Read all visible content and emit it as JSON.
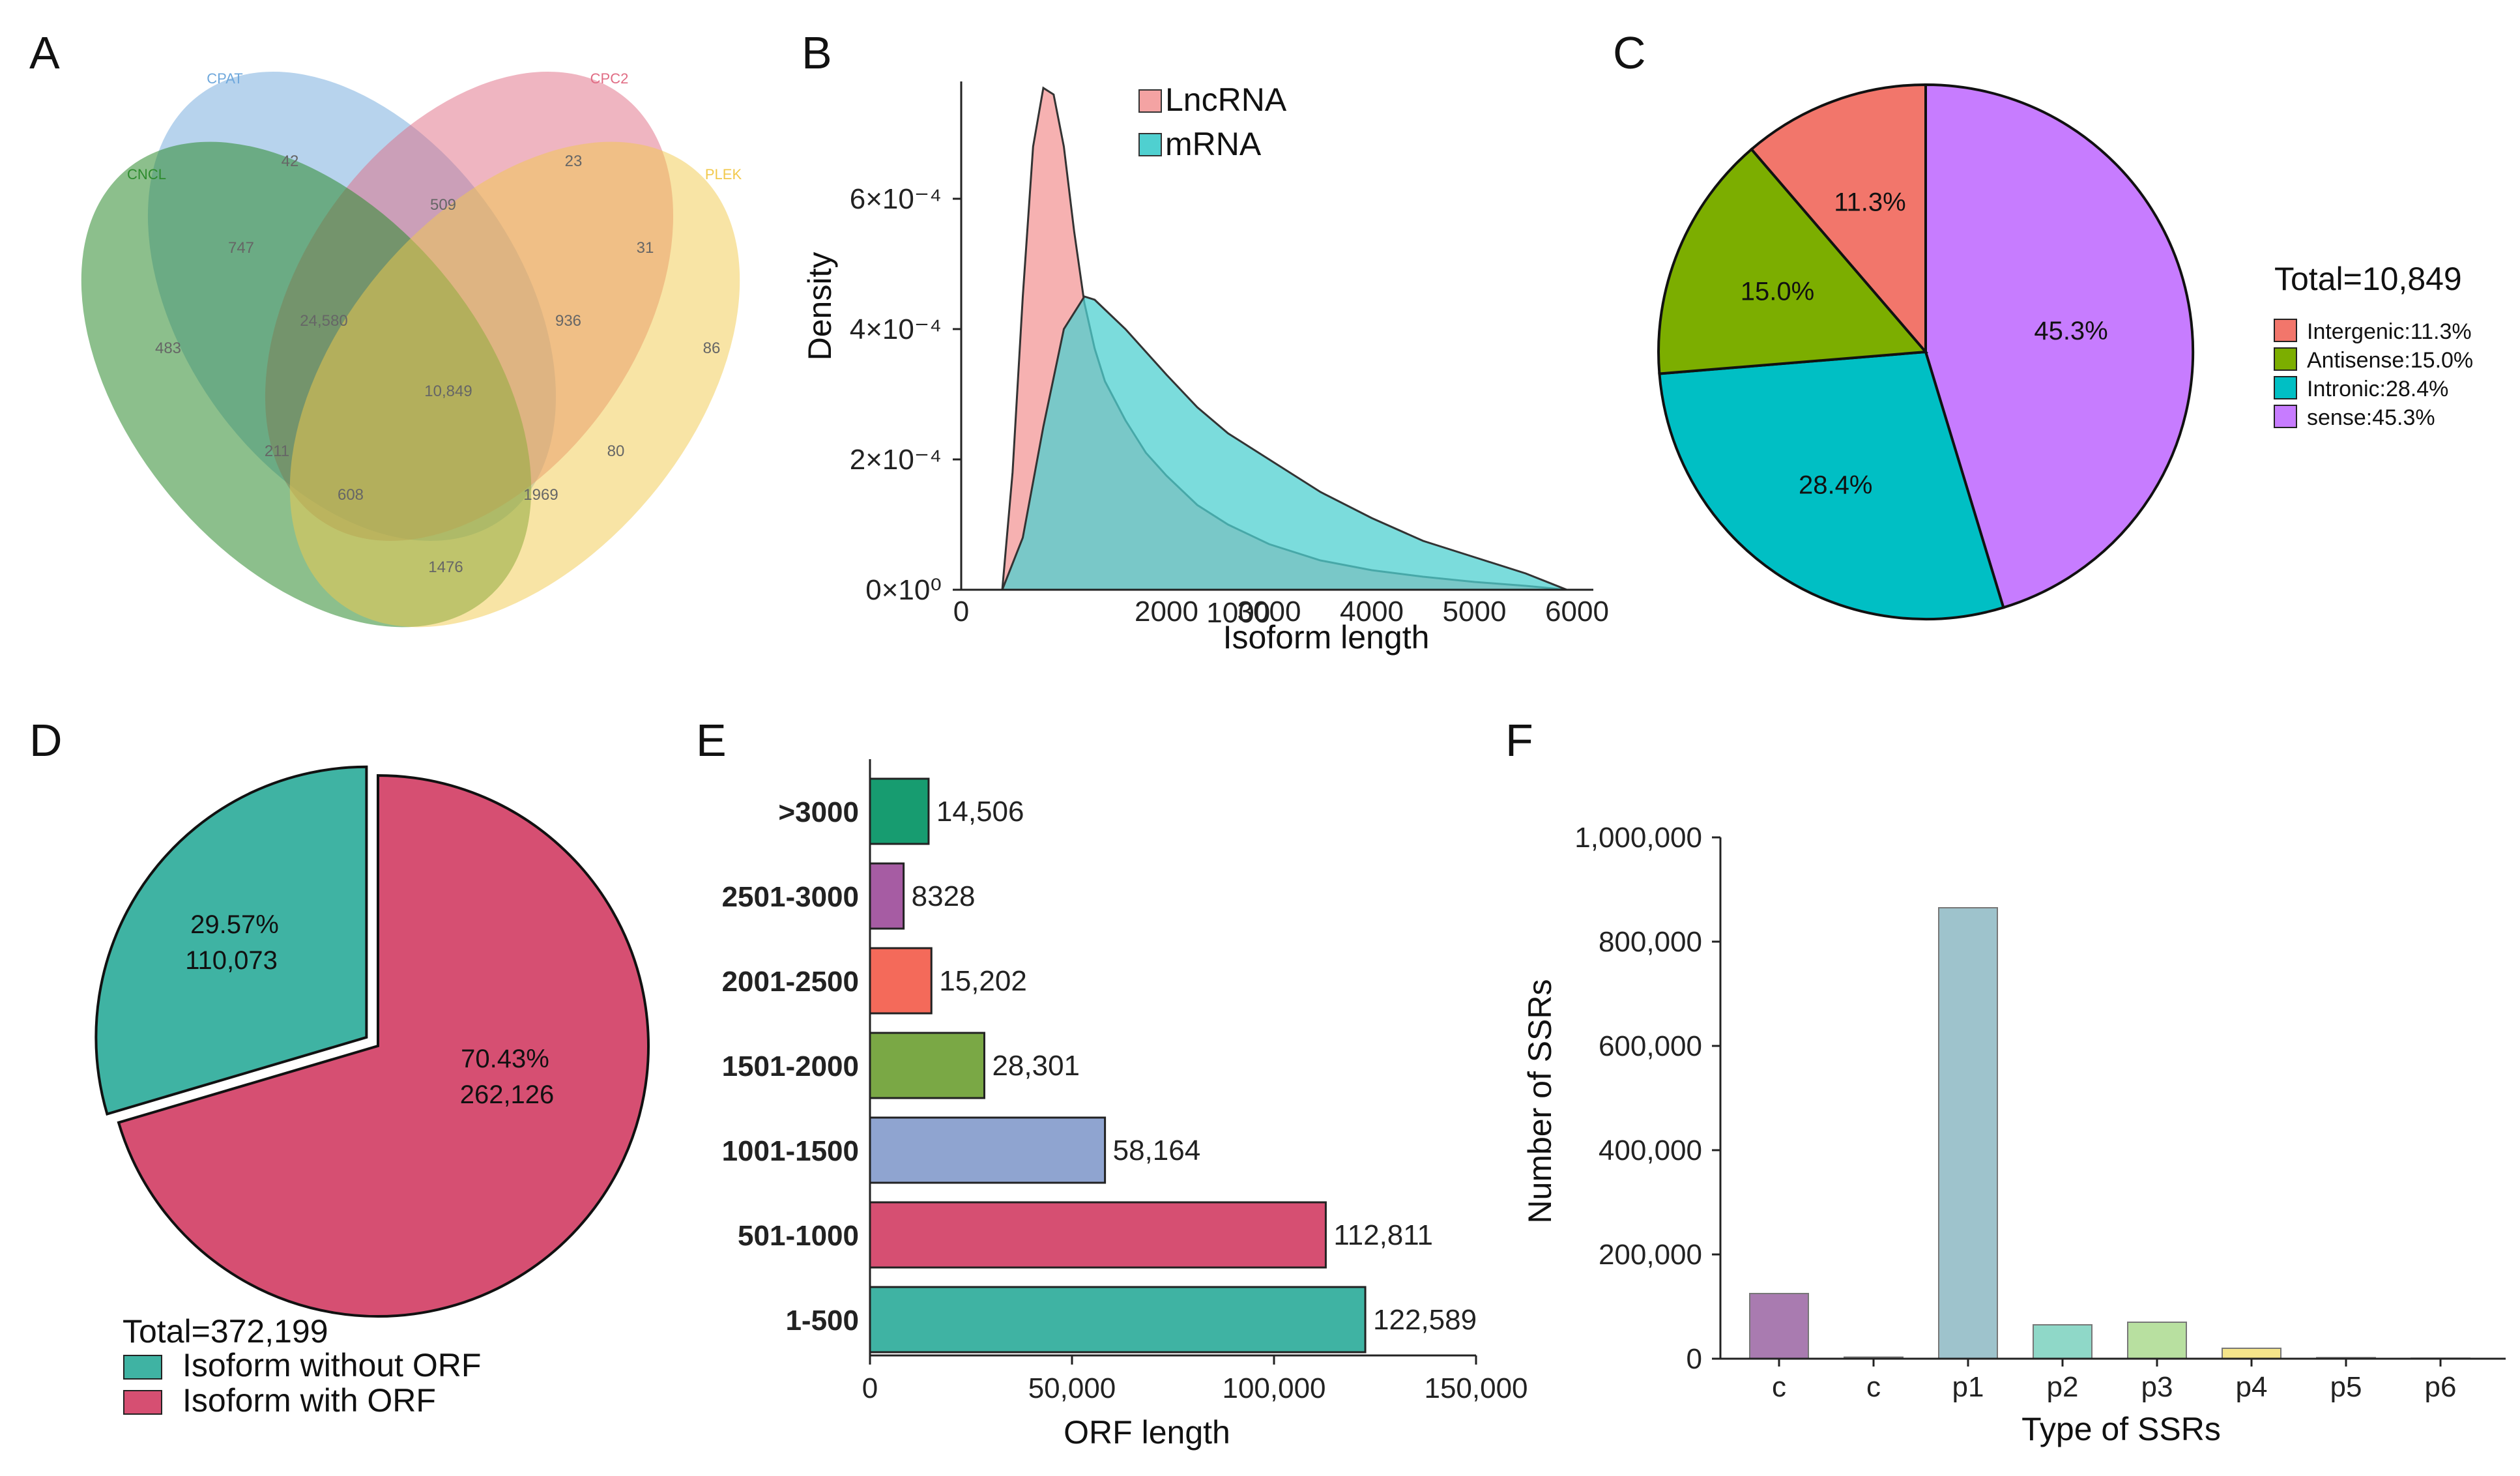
{
  "panels": [
    {
      "letter": "A"
    },
    {
      "letter": "B"
    },
    {
      "letter": "C"
    },
    {
      "letter": "D"
    },
    {
      "letter": "E"
    },
    {
      "letter": "F"
    }
  ],
  "venn": {
    "sets": [
      {
        "name": "CPAT",
        "color": "#6fa8dc"
      },
      {
        "name": "CPC2",
        "color": "#e06c84"
      },
      {
        "name": "CNCL",
        "color": "#2e8b2e"
      },
      {
        "name": "PLEK",
        "color": "#f2c94c"
      }
    ],
    "counts": [
      "42",
      "23",
      "509",
      "747",
      "31",
      "483",
      "24,580",
      "936",
      "86",
      "10,849",
      "211",
      "80",
      "608",
      "1969",
      "1476"
    ]
  },
  "chart_data": [
    {
      "type": "area",
      "panel": "B",
      "xlabel": "Isoform length",
      "ylabel": "Density",
      "xlim": [
        0,
        6000
      ],
      "ylim": [
        0,
        0.00078
      ],
      "xticks": [
        "0",
        "2000",
        "3000",
        "4000",
        "5000",
        "6000",
        "1000"
      ],
      "yticks": [
        "0×10⁰",
        "2×10⁻⁴",
        "4×10⁻⁴",
        "6×10⁻⁴"
      ],
      "legend": [
        "LncRNA",
        "mRNA"
      ],
      "series": [
        {
          "name": "LncRNA",
          "color": "#f4a3a3",
          "x": [
            400,
            500,
            600,
            700,
            800,
            900,
            1000,
            1100,
            1200,
            1300,
            1400,
            1600,
            1800,
            2000,
            2300,
            2600,
            3000,
            3500,
            4000,
            4500,
            5000,
            5500,
            5900
          ],
          "y": [
            0.0,
            0.00018,
            0.00045,
            0.00068,
            0.00077,
            0.00076,
            0.00068,
            0.00055,
            0.00044,
            0.00037,
            0.00032,
            0.00026,
            0.00021,
            0.000175,
            0.00013,
            0.0001,
            7e-05,
            4.5e-05,
            3e-05,
            2e-05,
            1.2e-05,
            6e-06,
            0.0
          ]
        },
        {
          "name": "mRNA",
          "color": "#4fd0d0",
          "x": [
            400,
            600,
            800,
            1000,
            1200,
            1300,
            1400,
            1600,
            1800,
            2000,
            2300,
            2600,
            3000,
            3500,
            4000,
            4500,
            5000,
            5500,
            5900
          ],
          "y": [
            0.0,
            8e-05,
            0.00025,
            0.0004,
            0.00045,
            0.000445,
            0.00043,
            0.0004,
            0.000365,
            0.00033,
            0.00028,
            0.00024,
            0.0002,
            0.00015,
            0.00011,
            7.5e-05,
            5e-05,
            2.5e-05,
            0.0
          ]
        }
      ]
    },
    {
      "type": "pie",
      "panel": "C",
      "total_label": "Total=10,849",
      "slices": [
        {
          "name": "Intergenic",
          "value": 11.3,
          "label": "11.3%",
          "legend": "Intergenic:11.3%",
          "color": "#f2766b"
        },
        {
          "name": "Antisense",
          "value": 15.0,
          "label": "15.0%",
          "legend": "Antisense:15.0%",
          "color": "#7cae00"
        },
        {
          "name": "Intronic",
          "value": 28.4,
          "label": "28.4%",
          "legend": "Intronic:28.4%",
          "color": "#00bfc4"
        },
        {
          "name": "sense",
          "value": 45.3,
          "label": "45.3%",
          "legend": "sense:45.3%",
          "color": "#c77cff"
        }
      ]
    },
    {
      "type": "pie",
      "panel": "D",
      "total_label": "Total=372,199",
      "slices": [
        {
          "name": "Isoform without ORF",
          "value": 110073,
          "pct": "29.57%",
          "count": "110,073",
          "color": "#3fb3a3"
        },
        {
          "name": "Isoform with ORF",
          "value": 262126,
          "pct": "70.43%",
          "count": "262,126",
          "color": "#d64f72"
        }
      ]
    },
    {
      "type": "bar",
      "panel": "E",
      "orientation": "horizontal",
      "xlabel": "ORF length",
      "xlim": [
        0,
        150000
      ],
      "xticks": [
        "0",
        "50,000",
        "100,000",
        "150,000"
      ],
      "categories": [
        ">3000",
        "2501-3000",
        "2001-2500",
        "1501-2000",
        "1001-1500",
        "501-1000",
        "1-500"
      ],
      "values": [
        14506,
        8328,
        15202,
        28301,
        58164,
        112811,
        122589
      ],
      "value_labels": [
        "14,506",
        "8328",
        "15,202",
        "28,301",
        "58,164",
        "112,811",
        "122,589"
      ],
      "colors": [
        "#179c70",
        "#a65ca3",
        "#f46a5a",
        "#7aa845",
        "#8fa4d0",
        "#d64f72",
        "#3fb3a3"
      ]
    },
    {
      "type": "bar",
      "panel": "F",
      "xlabel": "Type of SSRs",
      "ylabel": "Number of SSRs",
      "ylim": [
        0,
        1000000
      ],
      "yticks": [
        "0",
        "200,000",
        "400,000",
        "600,000",
        "800,000",
        "1,000,000"
      ],
      "categories": [
        "c",
        "c",
        "p1",
        "p2",
        "p3",
        "p4",
        "p5",
        "p6"
      ],
      "values": [
        125000,
        3000,
        865000,
        65000,
        70000,
        20000,
        2000,
        1000
      ],
      "colors": [
        "#a97bb0",
        "#bdbdbd",
        "#9ec3cc",
        "#8fd8c8",
        "#b8e0a0",
        "#f5e58a",
        "#c9c9c9",
        "#d9d9d9"
      ]
    }
  ]
}
